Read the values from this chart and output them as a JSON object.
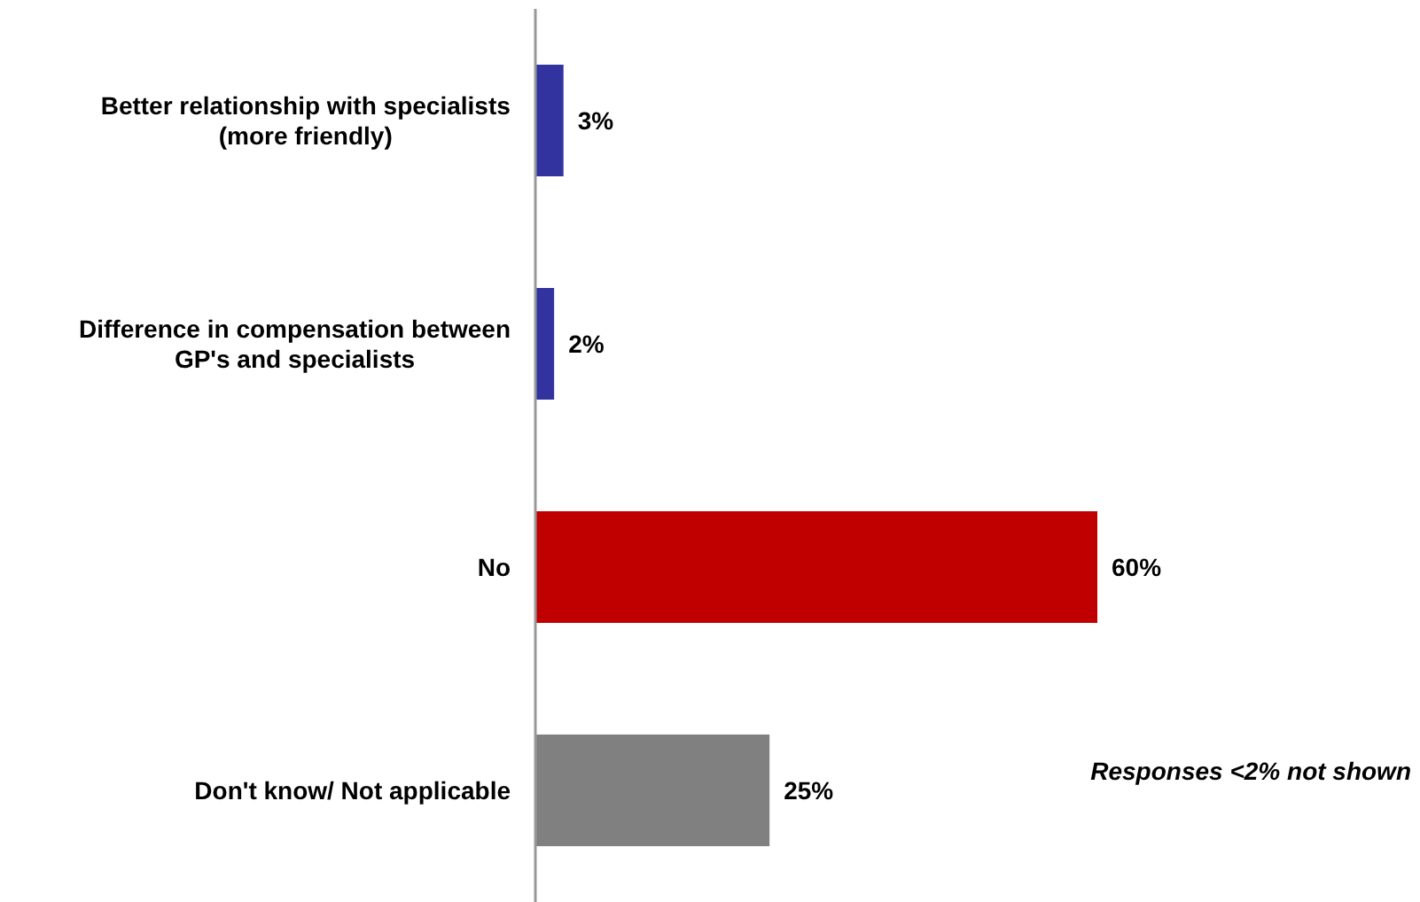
{
  "chart_data": {
    "type": "bar",
    "orientation": "horizontal",
    "categories": [
      "Better relationship with specialists (more friendly)",
      "Difference in compensation between GP's and specialists",
      "No",
      "Don't know/ Not applicable"
    ],
    "values": [
      3,
      2,
      60,
      25
    ],
    "colors": [
      "#3333a0",
      "#3333a0",
      "#c00000",
      "#808080"
    ],
    "value_labels": [
      "3%",
      "2%",
      "60%",
      "25%"
    ],
    "annotations": [
      {
        "text": "Responses <2% not shown"
      }
    ]
  }
}
